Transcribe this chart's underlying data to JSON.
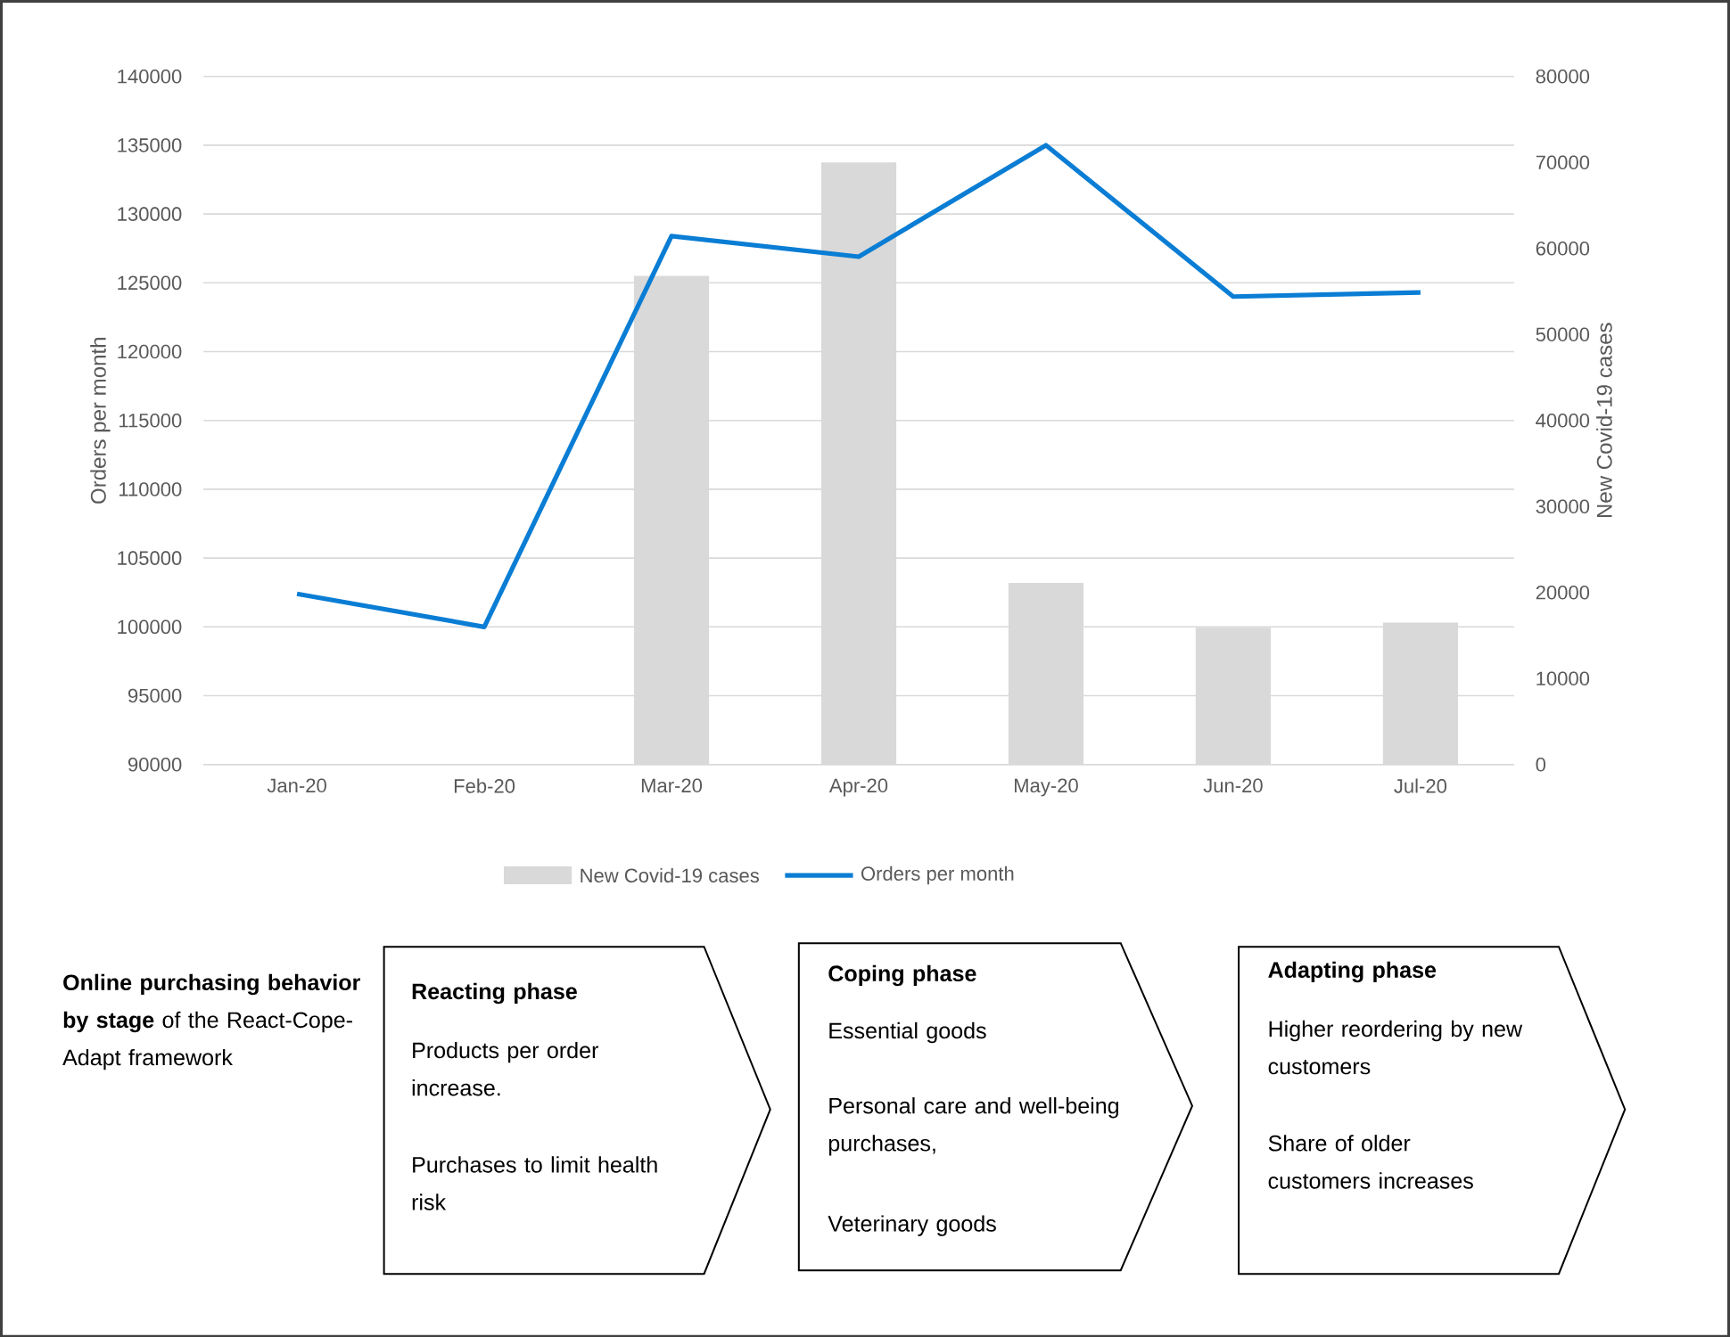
{
  "chart_data": {
    "type": "bar",
    "categories": [
      "Jan-20",
      "Feb-20",
      "Mar-20",
      "Apr-20",
      "May-20",
      "Jun-20",
      "Jul-20"
    ],
    "series": [
      {
        "name": "New Covid-19 cases",
        "axis": "y2",
        "color": "#d9d9d9",
        "values": [
          0,
          0,
          56800,
          70000,
          21100,
          15900,
          16500
        ]
      },
      {
        "name": "Orders per month",
        "type": "line",
        "color": "#0a7dd4",
        "values": [
          102400,
          100000,
          128400,
          126900,
          135000,
          124000,
          124300
        ]
      }
    ],
    "ylabel": "Orders per month",
    "y2label": "New Covid-19 cases",
    "ylim": [
      90000,
      140000
    ],
    "yticks": [
      90000,
      95000,
      100000,
      105000,
      110000,
      115000,
      120000,
      125000,
      130000,
      135000,
      140000
    ],
    "y2lim": [
      0,
      80000
    ],
    "y2ticks": [
      0,
      10000,
      20000,
      30000,
      40000,
      50000,
      60000,
      70000,
      80000
    ],
    "grid": "y",
    "legend": "bottom",
    "annotations": [
      "**Online purchasing behavior by stage** of the React-Cope-Adapt framework",
      "Reacting phase",
      "Products per order increase.",
      "Purchases to limit health risk",
      "Coping phase",
      "Essential goods",
      "Personal care and well-being purchases,",
      "Veterinary goods",
      "Adapting phase",
      "Higher reordering by new customers",
      "Share of older customers increases"
    ]
  }
}
